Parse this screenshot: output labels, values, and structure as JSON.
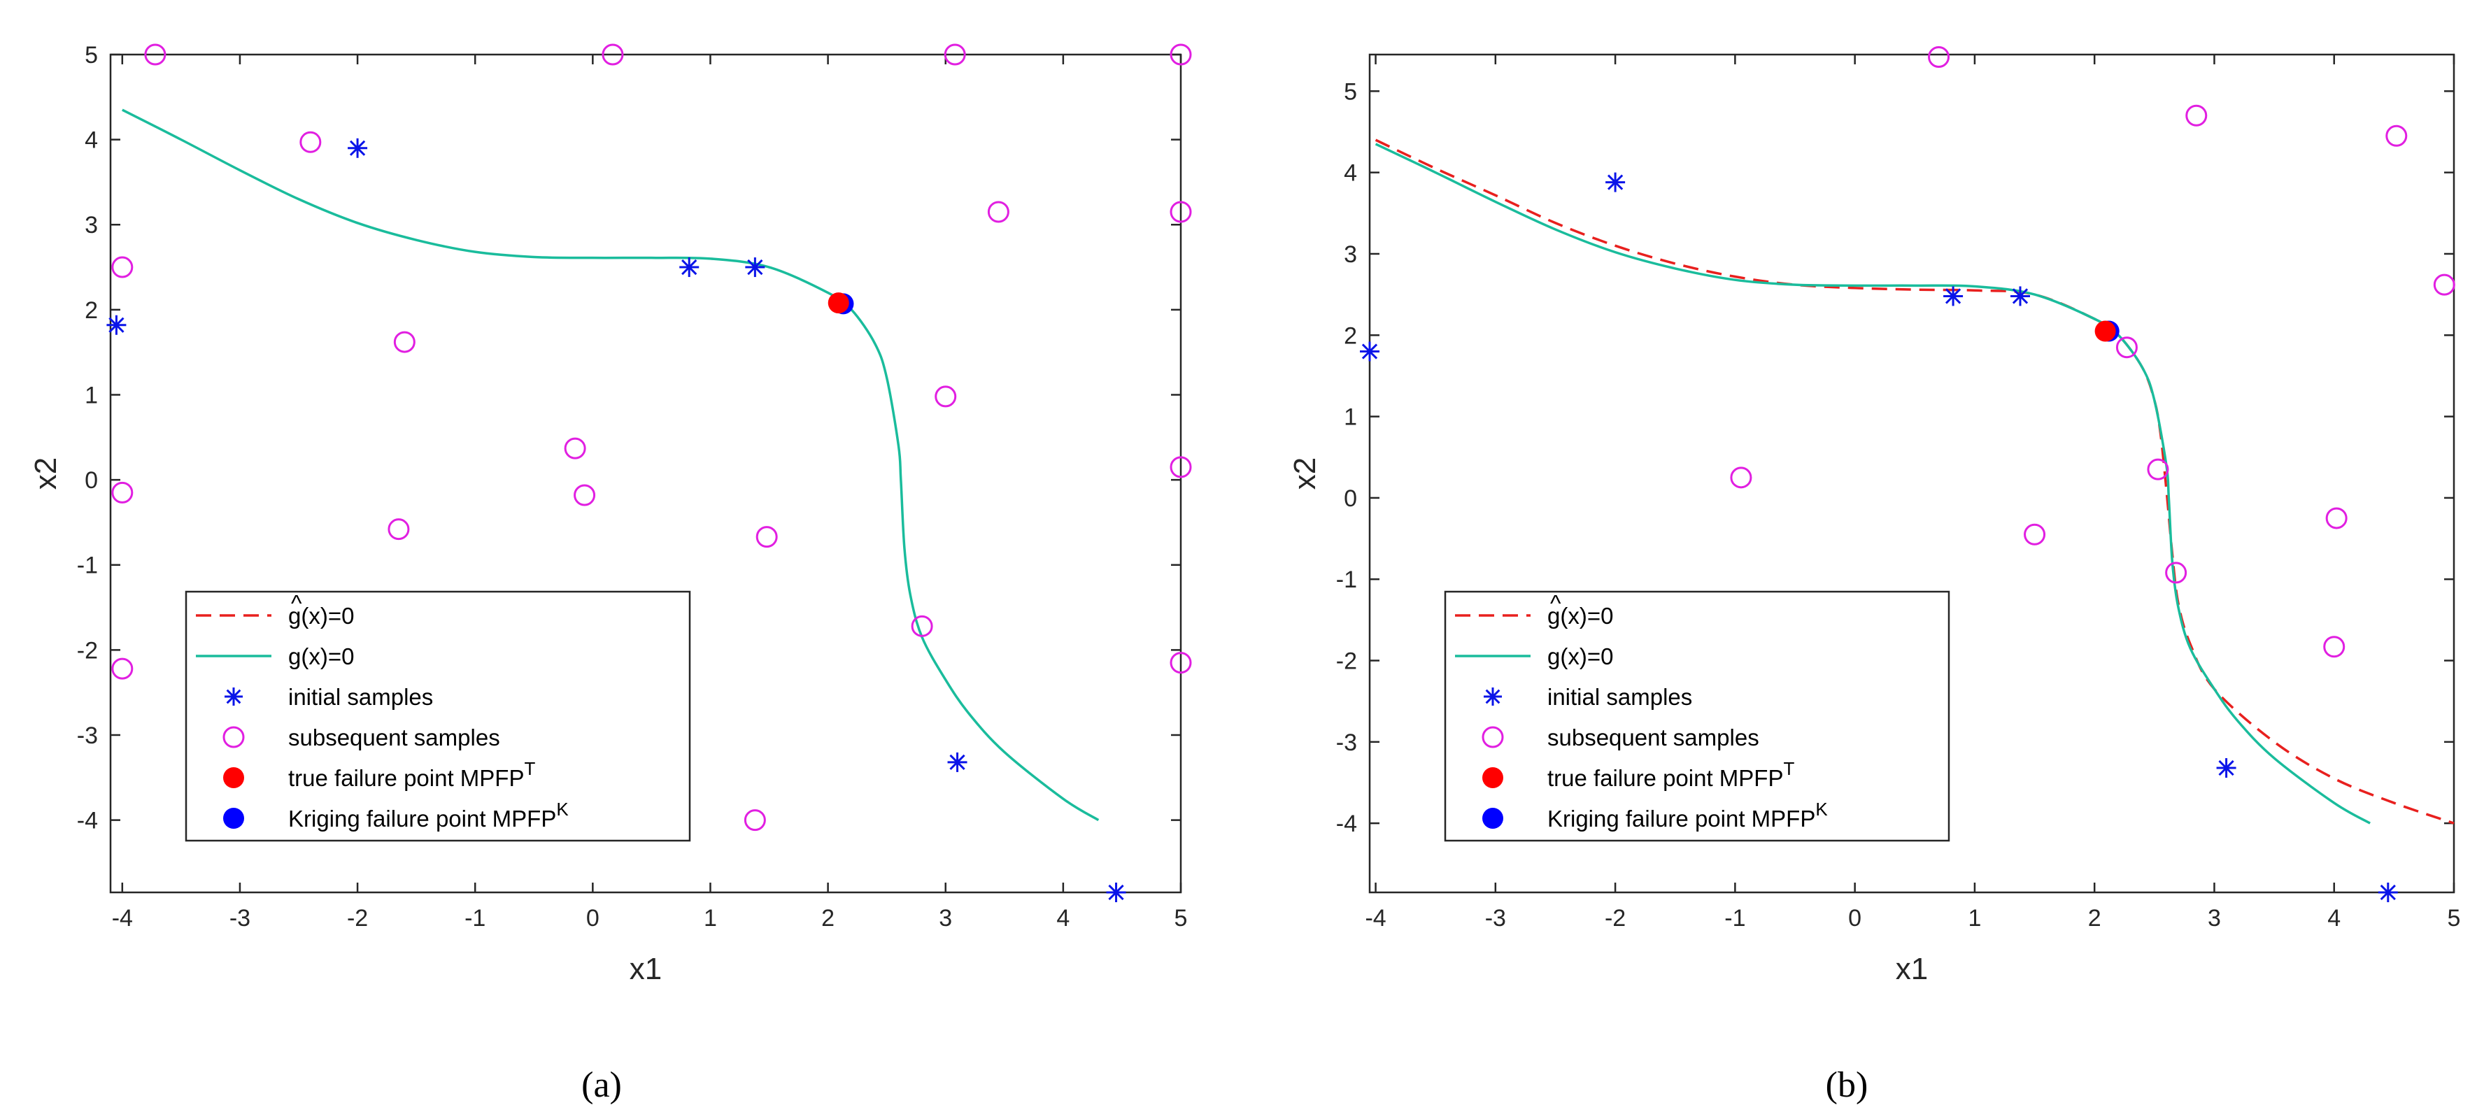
{
  "figure": {
    "panel_labels": [
      "(a)",
      "(b)"
    ]
  },
  "chart_data": [
    {
      "type": "scatter",
      "panel": "(a)",
      "title": "",
      "xlabel": "x1",
      "ylabel": "x2",
      "xlim": [
        -4.1,
        5
      ],
      "ylim": [
        -4.85,
        5
      ],
      "xticks": [
        -4,
        -3,
        -2,
        -1,
        0,
        1,
        2,
        3,
        4,
        5
      ],
      "yticks": [
        -4,
        -3,
        -2,
        -1,
        0,
        1,
        2,
        3,
        4,
        5
      ],
      "grid": false,
      "legend_position": "bottom-left",
      "colors": {
        "g": "#1ABC9C",
        "ghat": "#E8201E",
        "initial": "#0A14E8",
        "subsequent": "#E11FE1",
        "true_mpfp": "#FF0000",
        "kriging_mpfp": "#0000FF"
      },
      "legend": {
        "ghat": {
          "main": "g(x)=0",
          "hat_glyph": "^"
        },
        "g": "g(x)=0",
        "initial": "initial samples",
        "subsequent": "subsequent samples",
        "true_mpfp": {
          "main": "true failure point MPFP",
          "sup": "T"
        },
        "kriging_mpfp": {
          "main": "Kriging failure point MPFP",
          "sup": "K"
        }
      },
      "series": [
        {
          "name": "g(x)=0",
          "kind": "line",
          "x": [
            -4,
            -3.5,
            -3,
            -2.5,
            -2,
            -1.5,
            -1,
            -0.5,
            0,
            0.5,
            1,
            1.5,
            2,
            2.2,
            2.4,
            2.5,
            2.6,
            2.62,
            2.65,
            2.7,
            2.8,
            3.0,
            3.2,
            3.5,
            4.0,
            4.3
          ],
          "y": [
            4.35,
            4.0,
            3.64,
            3.3,
            3.02,
            2.82,
            2.68,
            2.62,
            2.61,
            2.61,
            2.6,
            2.5,
            2.2,
            2.0,
            1.6,
            1.2,
            0.4,
            0.0,
            -0.8,
            -1.35,
            -1.85,
            -2.35,
            -2.75,
            -3.2,
            -3.75,
            -4.0
          ]
        },
        {
          "name": "initial samples",
          "kind": "star",
          "x": [
            -4.05,
            -2.0,
            0.82,
            1.38,
            3.1,
            4.45
          ],
          "y": [
            1.82,
            3.9,
            2.5,
            2.5,
            -3.32,
            -4.85
          ]
        },
        {
          "name": "subsequent samples",
          "kind": "circle",
          "x": [
            -3.72,
            0.17,
            3.08,
            5.0,
            -2.4,
            -4.0,
            3.45,
            5.0,
            -1.6,
            3.0,
            -0.15,
            -4.0,
            -0.07,
            5.0,
            -1.65,
            1.48,
            2.8,
            -4.0,
            5.0,
            1.38
          ],
          "y": [
            5.0,
            5.0,
            5.0,
            5.0,
            3.97,
            2.5,
            3.15,
            3.15,
            1.62,
            0.98,
            0.37,
            -0.15,
            -0.18,
            0.15,
            -0.58,
            -0.67,
            -1.72,
            -2.22,
            -2.15,
            -4.0
          ]
        },
        {
          "name": "true failure point MPFP T",
          "kind": "dot",
          "x": [
            2.09
          ],
          "y": [
            2.08
          ]
        },
        {
          "name": "Kriging failure point MPFP K",
          "kind": "dot",
          "x": [
            2.13
          ],
          "y": [
            2.07
          ]
        }
      ]
    },
    {
      "type": "scatter",
      "panel": "(b)",
      "title": "",
      "xlabel": "x1",
      "ylabel": "x2",
      "xlim": [
        -4.05,
        5
      ],
      "ylim": [
        -4.85,
        5.45
      ],
      "xticks": [
        -4,
        -3,
        -2,
        -1,
        0,
        1,
        2,
        3,
        4,
        5
      ],
      "yticks": [
        -4,
        -3,
        -2,
        -1,
        0,
        1,
        2,
        3,
        4,
        5
      ],
      "grid": false,
      "legend_position": "bottom-left",
      "colors": {
        "g": "#1ABC9C",
        "ghat": "#E8201E",
        "initial": "#0A14E8",
        "subsequent": "#E11FE1",
        "true_mpfp": "#FF0000",
        "kriging_mpfp": "#0000FF"
      },
      "legend": {
        "ghat": {
          "main": "g(x)=0",
          "hat_glyph": "^"
        },
        "g": "g(x)=0",
        "initial": "initial samples",
        "subsequent": "subsequent samples",
        "true_mpfp": {
          "main": "true failure point MPFP",
          "sup": "T"
        },
        "kriging_mpfp": {
          "main": "Kriging failure point MPFP",
          "sup": "K"
        }
      },
      "series": [
        {
          "name": "ĝ(x)=0",
          "kind": "dashed",
          "x": [
            -4,
            -3.5,
            -3,
            -2.5,
            -2,
            -1.5,
            -1,
            -0.5,
            0,
            0.5,
            1,
            1.5,
            2,
            2.2,
            2.4,
            2.5,
            2.55,
            2.6,
            2.65,
            2.7,
            2.8,
            3.0,
            3.5,
            4.0,
            4.5,
            5.0
          ],
          "y": [
            4.4,
            4.05,
            3.72,
            3.38,
            3.1,
            2.88,
            2.72,
            2.62,
            2.58,
            2.56,
            2.55,
            2.5,
            2.2,
            2.0,
            1.6,
            1.2,
            0.8,
            0.1,
            -0.7,
            -1.3,
            -1.8,
            -2.35,
            -3.0,
            -3.45,
            -3.75,
            -4.0
          ]
        },
        {
          "name": "g(x)=0",
          "kind": "line",
          "x": [
            -4,
            -3.5,
            -3,
            -2.5,
            -2,
            -1.5,
            -1,
            -0.5,
            0,
            0.5,
            1,
            1.5,
            2,
            2.2,
            2.4,
            2.5,
            2.6,
            2.62,
            2.65,
            2.7,
            2.8,
            3.0,
            3.2,
            3.5,
            4.0,
            4.3
          ],
          "y": [
            4.35,
            4.0,
            3.64,
            3.3,
            3.02,
            2.82,
            2.68,
            2.62,
            2.61,
            2.61,
            2.6,
            2.5,
            2.2,
            2.0,
            1.6,
            1.2,
            0.4,
            0.0,
            -0.8,
            -1.35,
            -1.85,
            -2.35,
            -2.75,
            -3.2,
            -3.75,
            -4.0
          ]
        },
        {
          "name": "initial samples",
          "kind": "star",
          "x": [
            -4.05,
            -2.0,
            0.82,
            1.38,
            3.1,
            4.45
          ],
          "y": [
            1.8,
            3.88,
            2.48,
            2.48,
            -3.32,
            -4.85
          ]
        },
        {
          "name": "subsequent samples",
          "kind": "circle",
          "x": [
            0.7,
            2.85,
            4.52,
            4.92,
            -0.95,
            2.27,
            2.53,
            1.5,
            4.02,
            2.68,
            4.0
          ],
          "y": [
            5.42,
            4.7,
            4.45,
            2.62,
            0.25,
            1.85,
            0.35,
            -0.45,
            -0.25,
            -0.92,
            -1.83
          ]
        },
        {
          "name": "true failure point MPFP T",
          "kind": "dot",
          "x": [
            2.09
          ],
          "y": [
            2.05
          ]
        },
        {
          "name": "Kriging failure point MPFP K",
          "kind": "dot",
          "x": [
            2.12
          ],
          "y": [
            2.05
          ]
        }
      ]
    }
  ]
}
